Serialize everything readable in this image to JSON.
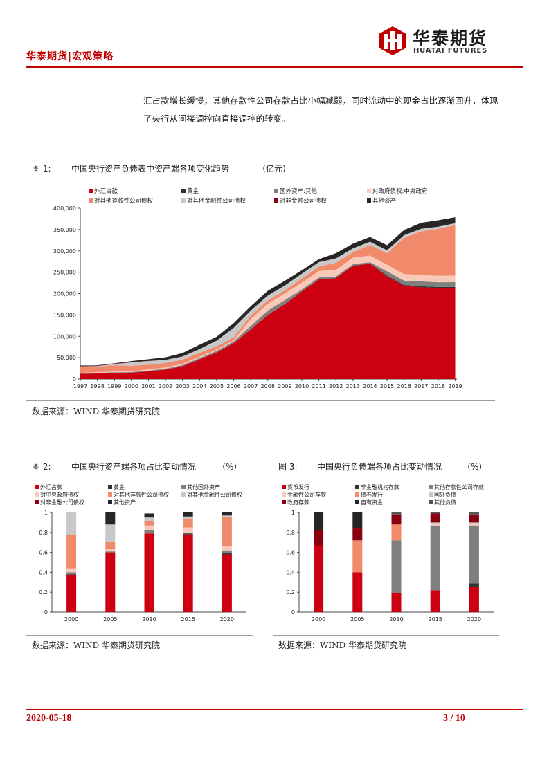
{
  "header": {
    "section": "华泰期货|宏观策略",
    "logo_cn": "华泰期货",
    "logo_en": "HUATAI FUTURES"
  },
  "paragraph": {
    "line1": "汇占款增长缓慢，其他存款性公司存款占比小幅减弱，同时流动中的现金占比逐渐回升，体现",
    "line2": "了央行从间接调控向直接调控的转变。"
  },
  "figure1": {
    "label": "图 1:",
    "title": "中国央行资产负债表中资产端各项变化趋势",
    "unit": "（亿元）",
    "source": "数据来源：WIND  华泰期货研究院"
  },
  "figure2": {
    "label": "图 2:",
    "title": "中国央行资产端各项占比变动情况",
    "unit": "（%）",
    "source": "数据来源：WIND  华泰期货研究院"
  },
  "figure3": {
    "label": "图 3:",
    "title": "中国央行负债端各项占比变动情况",
    "unit": "（%）",
    "source": "数据来源：WIND  华泰期货研究院"
  },
  "footer": {
    "date": "2020-05-18",
    "page": "3 / 10"
  },
  "colors": {
    "brand_red": "#c00000",
    "series": [
      "#cc0011",
      "#333333",
      "#7f7f7f",
      "#f9c9b9",
      "#f08a6a",
      "#c8c8c8",
      "#8b0010",
      "#262626"
    ]
  },
  "chart_data": [
    {
      "type": "area",
      "stacked": true,
      "x": [
        1997,
        1998,
        1999,
        2000,
        2001,
        2002,
        2003,
        2004,
        2005,
        2006,
        2007,
        2008,
        2009,
        2010,
        2011,
        2012,
        2013,
        2014,
        2015,
        2016,
        2017,
        2018,
        2019
      ],
      "xticks": [
        "1997",
        "1998",
        "1999",
        "2000",
        "2001",
        "2002",
        "2003",
        "2004",
        "2005",
        "2006",
        "2007",
        "2008",
        "2009",
        "2010",
        "2011",
        "2012",
        "2013",
        "2014",
        "2015",
        "2016",
        "2017",
        "2018",
        "2019"
      ],
      "ylim": [
        0,
        400000
      ],
      "yticks": [
        "0",
        "50,000",
        "100,000",
        "150,000",
        "200,000",
        "250,000",
        "300,000",
        "350,000",
        "400,000"
      ],
      "grid": false,
      "legend_position": "top",
      "series": [
        {
          "name": "外汇占款",
          "color": "#cc0011",
          "values": [
            12000,
            13000,
            14500,
            15000,
            18000,
            22000,
            30000,
            46000,
            62000,
            84000,
            116000,
            150000,
            175000,
            205000,
            233000,
            236000,
            265000,
            270000,
            240000,
            218000,
            215000,
            213000,
            213000
          ]
        },
        {
          "name": "黄金",
          "color": "#333333",
          "values": [
            100,
            100,
            100,
            100,
            300,
            300,
            300,
            300,
            300,
            300,
            300,
            300,
            700,
            700,
            700,
            700,
            700,
            700,
            2300,
            2300,
            2500,
            2500,
            2800
          ]
        },
        {
          "name": "国外资产:其他",
          "color": "#7f7f7f",
          "values": [
            1000,
            1200,
            1200,
            1200,
            1500,
            2000,
            2500,
            3000,
            3500,
            4000,
            8000,
            10000,
            9000,
            4500,
            4000,
            3500,
            3000,
            3000,
            10000,
            10000,
            11000,
            11000,
            11000
          ]
        },
        {
          "name": "对政府债权:中央政府",
          "color": "#f9c9b9",
          "values": [
            1500,
            1500,
            1600,
            1600,
            2800,
            2900,
            2900,
            2900,
            2900,
            2900,
            16000,
            16000,
            15700,
            15400,
            15400,
            15300,
            15300,
            15300,
            15300,
            15300,
            15300,
            15300,
            15300
          ]
        },
        {
          "name": "对其他存款性公司债权",
          "color": "#f08a6a",
          "values": [
            14000,
            13000,
            15000,
            13000,
            11000,
            10000,
            10000,
            9000,
            8000,
            6500,
            8000,
            8000,
            7000,
            9500,
            10000,
            17000,
            13000,
            25000,
            27000,
            85000,
            102000,
            110000,
            118000
          ]
        },
        {
          "name": "对其他金融性公司债权",
          "color": "#c8c8c8",
          "values": [
            1000,
            1500,
            2500,
            8000,
            8500,
            7500,
            7000,
            9000,
            13000,
            22000,
            12000,
            11000,
            11500,
            11300,
            10600,
            10000,
            8900,
            7500,
            6700,
            6300,
            5900,
            4800,
            4600
          ]
        },
        {
          "name": "对非金融公司债权",
          "color": "#8b0010",
          "values": [
            1000,
            1000,
            1000,
            1000,
            200,
            200,
            200,
            100,
            100,
            100,
            100,
            100,
            100,
            100,
            100,
            100,
            100,
            100,
            100,
            100,
            100,
            100,
            100
          ]
        },
        {
          "name": "其他资产",
          "color": "#262626",
          "values": [
            1000,
            1000,
            1000,
            2000,
            4000,
            6000,
            8000,
            10000,
            9000,
            11000,
            10000,
            11000,
            11000,
            8000,
            7000,
            12000,
            11000,
            11000,
            12000,
            12000,
            14000,
            15000,
            14000
          ]
        }
      ]
    },
    {
      "type": "bar",
      "stacked": true,
      "categories": [
        "2000",
        "2005",
        "2010",
        "2015",
        "2020"
      ],
      "ylim": [
        0,
        1
      ],
      "yticks": [
        "0",
        "0.2",
        "0.4",
        "0.6",
        "0.8",
        "1"
      ],
      "grid": false,
      "legend_position": "top",
      "series": [
        {
          "name": "外汇占款",
          "color": "#cc0011",
          "values": [
            0.37,
            0.6,
            0.79,
            0.78,
            0.58
          ]
        },
        {
          "name": "黄金",
          "color": "#333333",
          "values": [
            0.01,
            0.0,
            0.0,
            0.01,
            0.01
          ]
        },
        {
          "name": "其他国外资产",
          "color": "#7f7f7f",
          "values": [
            0.02,
            0.01,
            0.03,
            0.01,
            0.03
          ]
        },
        {
          "name": "对中央政府债权",
          "color": "#f9c9b9",
          "values": [
            0.04,
            0.02,
            0.05,
            0.05,
            0.04
          ]
        },
        {
          "name": "对其他存款性公司债权",
          "color": "#f08a6a",
          "values": [
            0.34,
            0.08,
            0.04,
            0.09,
            0.3
          ]
        },
        {
          "name": "对其他金融性公司债权",
          "color": "#c8c8c8",
          "values": [
            0.22,
            0.17,
            0.04,
            0.02,
            0.01
          ]
        },
        {
          "name": "对非金融公司债权",
          "color": "#8b0010",
          "values": [
            0.0,
            0.0,
            0.0,
            0.0,
            0.0
          ]
        },
        {
          "name": "其他资产",
          "color": "#262626",
          "values": [
            0.0,
            0.12,
            0.04,
            0.04,
            0.03
          ]
        }
      ]
    },
    {
      "type": "bar",
      "stacked": true,
      "categories": [
        "2000",
        "2005",
        "2010",
        "2015",
        "2020"
      ],
      "ylim": [
        0,
        1
      ],
      "yticks": [
        "0",
        "0.2",
        "0.4",
        "0.6",
        "0.8",
        "1"
      ],
      "grid": false,
      "legend_position": "top",
      "series": [
        {
          "name": "货币发行",
          "color": "#cc0011",
          "values": [
            0.67,
            0.4,
            0.19,
            0.22,
            0.25
          ]
        },
        {
          "name": "非金融机构存款",
          "color": "#333333",
          "values": [
            0.0,
            0.0,
            0.0,
            0.0,
            0.04
          ]
        },
        {
          "name": "其他存款性公司存款",
          "color": "#7f7f7f",
          "values": [
            0.0,
            0.0,
            0.53,
            0.65,
            0.58
          ]
        },
        {
          "name": "金融性公司存款",
          "color": "#f9c9b9",
          "values": [
            0.0,
            0.0,
            0.0,
            0.02,
            0.02
          ]
        },
        {
          "name": "债券发行",
          "color": "#f08a6a",
          "values": [
            0.0,
            0.32,
            0.16,
            0.0,
            0.0
          ]
        },
        {
          "name": "国外负债",
          "color": "#c8c8c8",
          "values": [
            0.0,
            0.0,
            0.0,
            0.01,
            0.01
          ]
        },
        {
          "name": "政府存款",
          "color": "#8b0010",
          "values": [
            0.15,
            0.12,
            0.1,
            0.09,
            0.08
          ]
        },
        {
          "name": "自有资金",
          "color": "#262626",
          "values": [
            0.18,
            0.16,
            0.0,
            0.0,
            0.0
          ]
        },
        {
          "name": "其他负债",
          "color": "#555555",
          "values": [
            0.0,
            0.0,
            0.02,
            0.01,
            0.02
          ]
        }
      ]
    }
  ]
}
